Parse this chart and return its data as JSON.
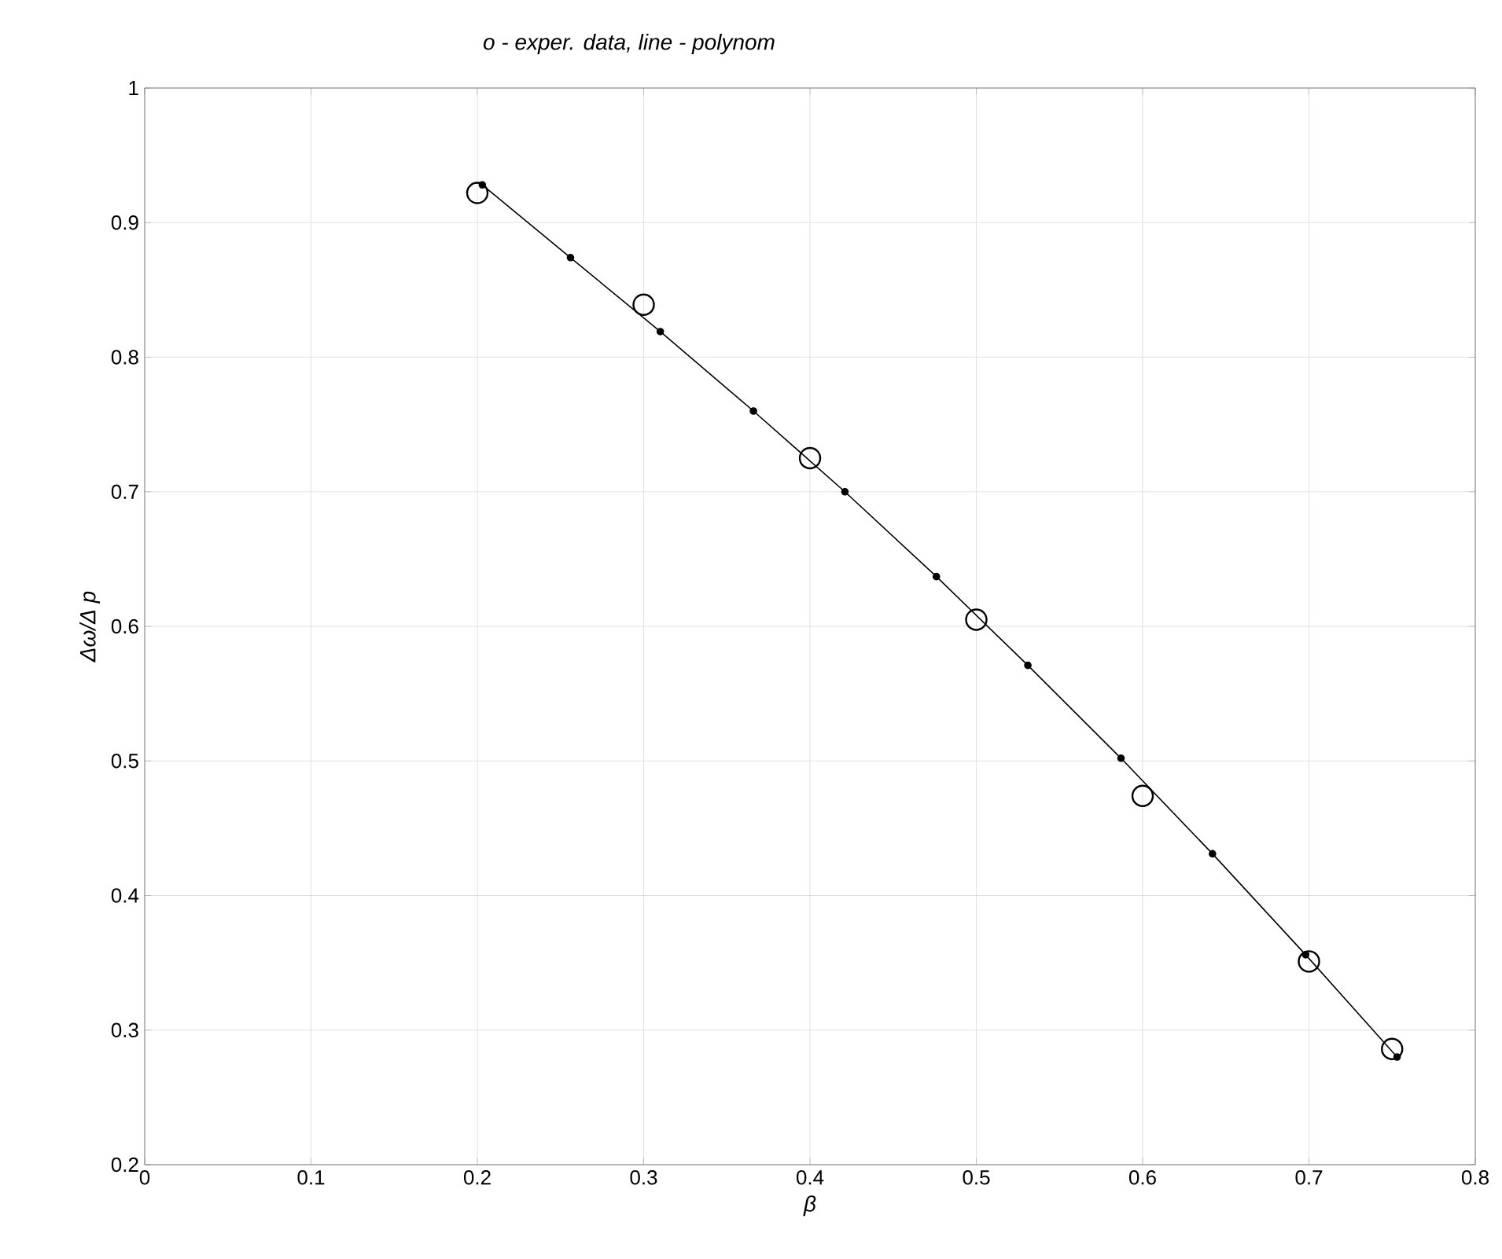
{
  "chart_data": {
    "type": "scatter",
    "title": "o - exper. data,  line - polynom",
    "xlabel": "β",
    "ylabel": "Δω/Δ p",
    "xlim": [
      0,
      0.8
    ],
    "ylim": [
      0.2,
      1
    ],
    "xticks": [
      0,
      0.1,
      0.2,
      0.3,
      0.4,
      0.5,
      0.6,
      0.7,
      0.8
    ],
    "yticks": [
      0.2,
      0.3,
      0.4,
      0.5,
      0.6,
      0.7,
      0.8,
      0.9,
      1
    ],
    "grid": true,
    "series": [
      {
        "color": "#000000",
        "marker": "circle",
        "x": [
          0.2,
          0.3,
          0.4,
          0.5,
          0.6,
          0.7,
          0.75
        ],
        "values": [
          0.922,
          0.839,
          0.725,
          0.605,
          0.474,
          0.351,
          0.286
        ]
      },
      {
        "type": "line",
        "color": "#000000",
        "marker": "dot",
        "line_style": "solid",
        "x": [
          0.203,
          0.256,
          0.31,
          0.366,
          0.421,
          0.476,
          0.531,
          0.587,
          0.642,
          0.698,
          0.753
        ],
        "values": [
          0.928,
          0.874,
          0.819,
          0.76,
          0.7,
          0.637,
          0.571,
          0.502,
          0.431,
          0.356,
          0.28
        ]
      }
    ]
  }
}
